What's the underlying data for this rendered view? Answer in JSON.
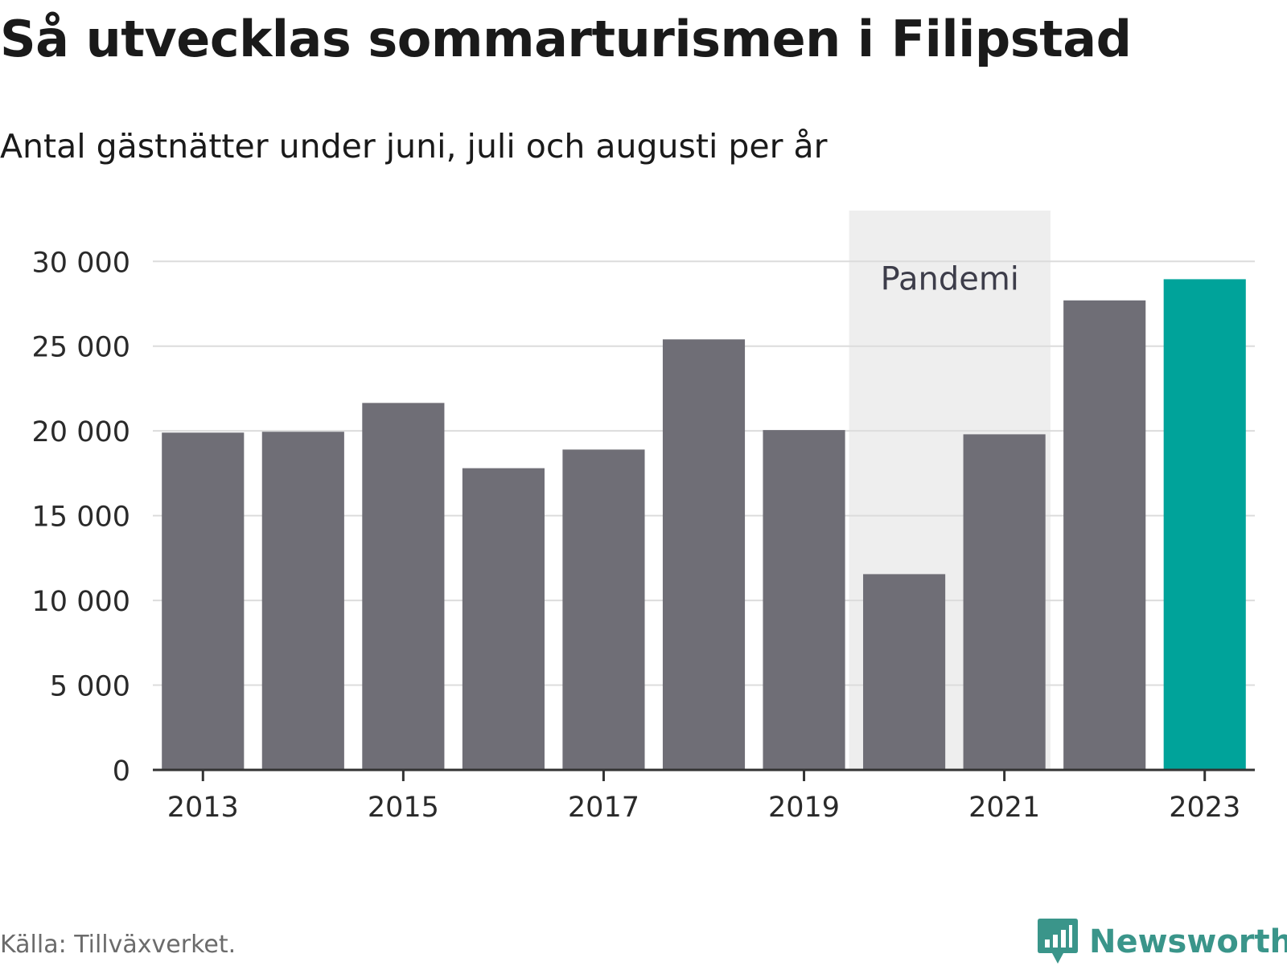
{
  "chart_data": {
    "type": "bar",
    "title": "Så utvecklas sommarturismen i Filipstad",
    "subtitle": "Antal gästnätter under juni, juli och augusti per år",
    "categories": [
      "2013",
      "2014",
      "2015",
      "2016",
      "2017",
      "2018",
      "2019",
      "2020",
      "2021",
      "2022",
      "2023"
    ],
    "values": [
      19900,
      19950,
      21650,
      17800,
      18900,
      25400,
      20050,
      11550,
      19800,
      27700,
      28950
    ],
    "x_tick_labels": [
      "2013",
      "2015",
      "2017",
      "2019",
      "2021",
      "2023"
    ],
    "y_ticks": [
      0,
      5000,
      10000,
      15000,
      20000,
      25000,
      30000
    ],
    "y_tick_labels": [
      "0",
      "5 000",
      "10 000",
      "15 000",
      "20 000",
      "25 000",
      "30 000"
    ],
    "ylim": [
      0,
      33000
    ],
    "grid": true,
    "highlight": {
      "category": "2023",
      "color": "#00a39a"
    },
    "bar_color": "#6f6e76",
    "annotation": {
      "label": "Pandemi",
      "from": "2020",
      "to": "2021",
      "color": "#eeeeee"
    }
  },
  "footer": {
    "source": "Källa: Tillväxverket.",
    "brand": "Newsworthy",
    "brand_color": "#3a958a"
  }
}
